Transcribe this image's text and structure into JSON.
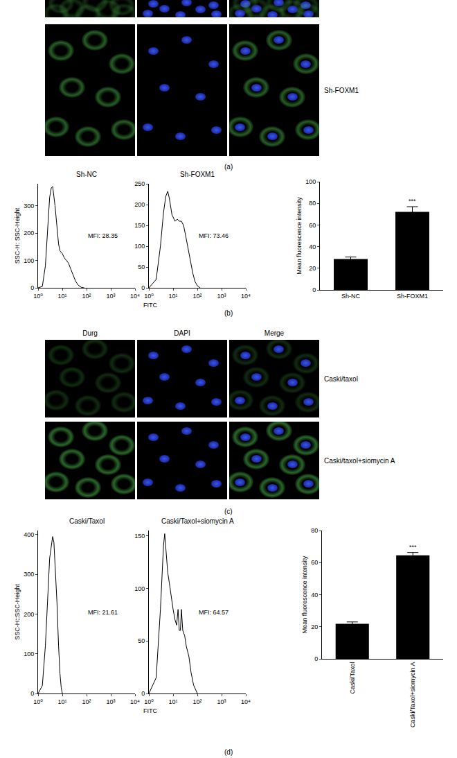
{
  "panel_labels": [
    "(a)",
    "(b)",
    "(c)",
    "(d)"
  ],
  "image_panels": [
    {
      "rows": [
        {
          "label": null
        },
        {
          "label": "Sh-FOXM1"
        }
      ]
    },
    {
      "columns": [
        "Durg",
        "DAPI",
        "Merge"
      ],
      "rows": [
        {
          "label": "Caski/taxol"
        },
        {
          "label": "Caski/taxol+siomycin A"
        }
      ]
    }
  ],
  "chart_data": [
    {
      "type": "line",
      "title": "Sh-NC",
      "xlabel": "FITC",
      "ylabel": "SSC-H: SSC-Height",
      "log": "x",
      "color": "#000000",
      "x": [
        1,
        1.5,
        2,
        2.5,
        3,
        3.5,
        4,
        5,
        6,
        7,
        8,
        10,
        12,
        15,
        18,
        22,
        28,
        35,
        45,
        60,
        80
      ],
      "values": [
        0,
        5,
        80,
        220,
        330,
        365,
        370,
        300,
        220,
        160,
        135,
        125,
        110,
        100,
        90,
        70,
        45,
        25,
        10,
        2,
        0
      ],
      "xlim": [
        1,
        10000
      ],
      "xticks": [
        {
          "value": 1,
          "label": "10⁰"
        },
        {
          "value": 10,
          "label": "10¹"
        },
        {
          "value": 100,
          "label": "10²"
        },
        {
          "value": 1000,
          "label": "10³"
        },
        {
          "value": 10000,
          "label": "10⁴"
        }
      ],
      "ylim": [
        0,
        380
      ],
      "yticks": [
        0,
        100,
        200,
        300
      ],
      "annotations": [
        {
          "text": "MFI: 28.35"
        }
      ]
    },
    {
      "type": "line",
      "title": "Sh-FOXM1",
      "log": "x",
      "color": "#000000",
      "x": [
        1,
        2,
        3,
        4,
        5,
        6,
        7,
        8,
        9,
        10,
        12,
        15,
        18,
        22,
        27,
        33,
        40,
        50,
        65,
        80,
        100,
        130
      ],
      "values": [
        0,
        20,
        100,
        180,
        220,
        232,
        215,
        190,
        175,
        170,
        160,
        165,
        160,
        160,
        150,
        125,
        100,
        65,
        35,
        15,
        5,
        0
      ],
      "xlim": [
        1,
        10000
      ],
      "xticks": [
        {
          "value": 1,
          "label": "10⁰"
        },
        {
          "value": 10,
          "label": "10¹"
        },
        {
          "value": 100,
          "label": "10²"
        },
        {
          "value": 1000,
          "label": "10³"
        },
        {
          "value": 10000,
          "label": "10⁴"
        }
      ],
      "ylim": [
        0,
        250
      ],
      "yticks": [
        0,
        50,
        100,
        150,
        200,
        250
      ],
      "annotations": [
        {
          "text": "MFI: 73.46"
        }
      ]
    },
    {
      "type": "bar",
      "ylabel": "Mean fluorescence intensity",
      "color": "#000000",
      "categories": [
        "Sh-NC",
        "Sh-FOXM1"
      ],
      "values": [
        28.6,
        72.1
      ],
      "errors": [
        1.8,
        4.8
      ],
      "ylim": [
        0,
        100
      ],
      "yticks": [
        0,
        20,
        40,
        60,
        80,
        100
      ],
      "annotations": [
        {
          "category": "Sh-FOXM1",
          "text": "***"
        }
      ]
    },
    {
      "type": "line",
      "title": "Caski/Taxol",
      "xlabel": "FITC",
      "ylabel": "SSC-H::SSC-Height",
      "log": "x",
      "color": "#000000",
      "x": [
        1,
        1.5,
        2,
        2.5,
        3,
        3.5,
        4,
        4.5,
        5,
        6,
        7,
        8,
        9,
        10
      ],
      "values": [
        0,
        20,
        120,
        250,
        340,
        370,
        395,
        380,
        330,
        230,
        120,
        50,
        15,
        0
      ],
      "xlim": [
        1,
        10000
      ],
      "xticks": [
        {
          "value": 1,
          "label": "10⁰"
        },
        {
          "value": 10,
          "label": "10¹"
        },
        {
          "value": 100,
          "label": "10²"
        },
        {
          "value": 1000,
          "label": "10³"
        },
        {
          "value": 10000,
          "label": "10⁴"
        }
      ],
      "ylim": [
        0,
        410
      ],
      "yticks": [
        0,
        100,
        200,
        300,
        400
      ],
      "annotations": [
        {
          "text": "MFI: 21.61"
        }
      ]
    },
    {
      "type": "line",
      "title": "Caski/Taxol+siomycin A",
      "log": "x",
      "color": "#000000",
      "x": [
        1,
        2,
        3,
        4,
        4.5,
        5,
        6,
        7,
        8,
        10,
        12,
        14,
        16,
        18,
        20,
        22,
        25,
        30,
        35,
        45,
        55,
        70,
        100
      ],
      "values": [
        0,
        15,
        80,
        140,
        152,
        140,
        115,
        105,
        95,
        80,
        70,
        65,
        80,
        60,
        60,
        80,
        60,
        55,
        45,
        35,
        20,
        8,
        0
      ],
      "xlim": [
        1,
        10000
      ],
      "xticks": [
        {
          "value": 1,
          "label": "10⁰"
        },
        {
          "value": 10,
          "label": "10¹"
        },
        {
          "value": 100,
          "label": "10²"
        },
        {
          "value": 1000,
          "label": "10³"
        },
        {
          "value": 10000,
          "label": "10⁴"
        }
      ],
      "ylim": [
        0,
        155
      ],
      "yticks": [
        0,
        50,
        100,
        150
      ],
      "annotations": [
        {
          "text": "MFI: 64.57"
        }
      ]
    },
    {
      "type": "bar",
      "ylabel": "Mean fluorescence intensity",
      "color": "#000000",
      "categories": [
        "Caski/Taxol",
        "Caski/Taxol+siomycin A"
      ],
      "values": [
        21.8,
        64.5
      ],
      "errors": [
        1.2,
        1.8
      ],
      "ylim": [
        0,
        80
      ],
      "yticks": [
        0,
        20,
        40,
        60,
        80
      ],
      "annotations": [
        {
          "category": "Caski/Taxol+siomycin A",
          "text": "***"
        }
      ]
    }
  ]
}
